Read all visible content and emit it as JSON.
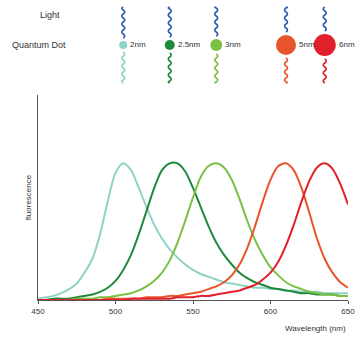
{
  "chart_data": {
    "type": "line",
    "annotations": [
      "Light",
      "Quantum Dot"
    ],
    "x_label": "Wavelength (nm)",
    "y_label": "fluorescence",
    "x": [
      450,
      455,
      460,
      465,
      470,
      475,
      480,
      485,
      490,
      495,
      500,
      505,
      510,
      515,
      520,
      525,
      530,
      535,
      540,
      545,
      550,
      555,
      560,
      565,
      570,
      575,
      580,
      585,
      590,
      595,
      600,
      605,
      610,
      615,
      620,
      625,
      630,
      635,
      640,
      645,
      650
    ],
    "series": [
      {
        "name": "2nm",
        "color": "#8fd3c4",
        "values": [
          0.01,
          0.02,
          0.03,
          0.05,
          0.08,
          0.12,
          0.2,
          0.3,
          0.48,
          0.72,
          0.93,
          1.0,
          0.95,
          0.82,
          0.68,
          0.55,
          0.45,
          0.37,
          0.31,
          0.26,
          0.22,
          0.19,
          0.17,
          0.15,
          0.13,
          0.12,
          0.11,
          0.1,
          0.09,
          0.09,
          0.08,
          0.08,
          0.07,
          0.07,
          0.06,
          0.06,
          0.06,
          0.05,
          0.05,
          0.05,
          0.05
        ]
      },
      {
        "name": "2.5nm",
        "color": "#1f8a3a",
        "values": [
          0,
          0,
          0.01,
          0.01,
          0.01,
          0.02,
          0.03,
          0.04,
          0.06,
          0.09,
          0.14,
          0.22,
          0.33,
          0.48,
          0.65,
          0.82,
          0.95,
          1.0,
          1.0,
          0.94,
          0.82,
          0.68,
          0.54,
          0.42,
          0.33,
          0.26,
          0.2,
          0.16,
          0.13,
          0.11,
          0.09,
          0.08,
          0.07,
          0.06,
          0.05,
          0.05,
          0.04,
          0.04,
          0.04,
          0.03,
          0.03
        ]
      },
      {
        "name": "3nm",
        "color": "#7ac143",
        "values": [
          0,
          0,
          0,
          0,
          0,
          0.01,
          0.01,
          0.01,
          0.02,
          0.02,
          0.03,
          0.04,
          0.05,
          0.07,
          0.1,
          0.14,
          0.2,
          0.29,
          0.42,
          0.58,
          0.75,
          0.9,
          0.98,
          1.0,
          0.97,
          0.88,
          0.74,
          0.58,
          0.44,
          0.33,
          0.24,
          0.18,
          0.13,
          0.1,
          0.08,
          0.06,
          0.05,
          0.04,
          0.04,
          0.03,
          0.03
        ]
      },
      {
        "name": "5nm",
        "color": "#e8542b",
        "values": [
          0,
          0,
          0,
          0,
          0,
          0,
          0,
          0,
          0,
          0.01,
          0.01,
          0.01,
          0.01,
          0.01,
          0.02,
          0.02,
          0.02,
          0.03,
          0.03,
          0.04,
          0.05,
          0.06,
          0.08,
          0.1,
          0.13,
          0.18,
          0.26,
          0.38,
          0.54,
          0.72,
          0.88,
          0.98,
          1.0,
          0.95,
          0.82,
          0.64,
          0.45,
          0.3,
          0.2,
          0.13,
          0.09
        ]
      },
      {
        "name": "6nm",
        "color": "#e0202b",
        "values": [
          0,
          0,
          0,
          0,
          0,
          0,
          0,
          0,
          0,
          0,
          0,
          0,
          0.01,
          0.01,
          0.01,
          0.01,
          0.01,
          0.01,
          0.02,
          0.02,
          0.02,
          0.03,
          0.03,
          0.04,
          0.05,
          0.06,
          0.07,
          0.09,
          0.11,
          0.15,
          0.2,
          0.28,
          0.4,
          0.55,
          0.72,
          0.87,
          0.97,
          1.0,
          0.96,
          0.85,
          0.7
        ]
      }
    ],
    "xlim": [
      450,
      650
    ],
    "xticks": [
      450,
      500,
      550,
      600,
      650
    ],
    "ylim": [
      0,
      1.5
    ],
    "grid": false,
    "tick_labels": "x"
  }
}
